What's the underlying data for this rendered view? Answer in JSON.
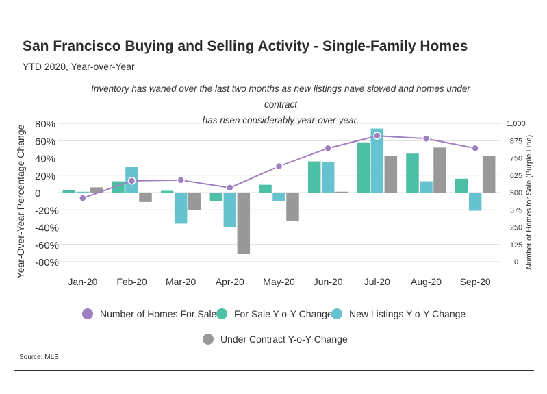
{
  "header": {
    "title": "San Francisco Buying and Selling Activity - Single-Family Homes",
    "subtitle": "YTD 2020, Year-over-Year",
    "note_line1": "Inventory has waned over the last two months as new listings have slowed and homes under contract",
    "note_line2": "has risen considerably year-over-year."
  },
  "footer": {
    "source": "Source:  MLS"
  },
  "colors": {
    "homes_for_sale": "#a07fc0",
    "for_sale_yoy": "#4dbfa4",
    "new_listings_yoy": "#66c2cf",
    "under_contract_yoy": "#999999",
    "grid": "#d9d9d9"
  },
  "chart_data": {
    "type": "bar",
    "categories": [
      "Jan-20",
      "Feb-20",
      "Mar-20",
      "Apr-20",
      "May-20",
      "Jun-20",
      "Jul-20",
      "Aug-20",
      "Sep-20"
    ],
    "ylabel": "Year-Over-Year Percentage Change",
    "y2label": "Number of Homes for Sale (Purple Line)",
    "ylim": [
      -80,
      80
    ],
    "y2lim": [
      0,
      1000
    ],
    "yticks": [
      "80%",
      "60%",
      "40%",
      "20%",
      "0",
      "-20%",
      "-40%",
      "-60%",
      "-80%"
    ],
    "y2ticks": [
      "1,000",
      "875",
      "750",
      "625",
      "500",
      "375",
      "250",
      "125",
      "0"
    ],
    "grid": true,
    "legend_position": "bottom",
    "series": [
      {
        "name": "For Sale Y-o-Y Change",
        "type": "bar",
        "values": [
          3,
          13,
          2,
          -10,
          9,
          36,
          58,
          45,
          16
        ]
      },
      {
        "name": "New Listings Y-o-Y Change",
        "type": "bar",
        "values": [
          1,
          30,
          -36,
          -40,
          -10,
          35,
          74,
          13,
          -21
        ]
      },
      {
        "name": "Under Contract Y-o-Y Change",
        "type": "bar",
        "values": [
          6,
          -11,
          -20,
          -71,
          -33,
          1,
          42,
          52,
          42
        ]
      },
      {
        "name": "Number of Homes For Sale",
        "type": "line",
        "axis": "right",
        "values": [
          460,
          585,
          590,
          535,
          690,
          820,
          910,
          890,
          820
        ]
      }
    ]
  }
}
